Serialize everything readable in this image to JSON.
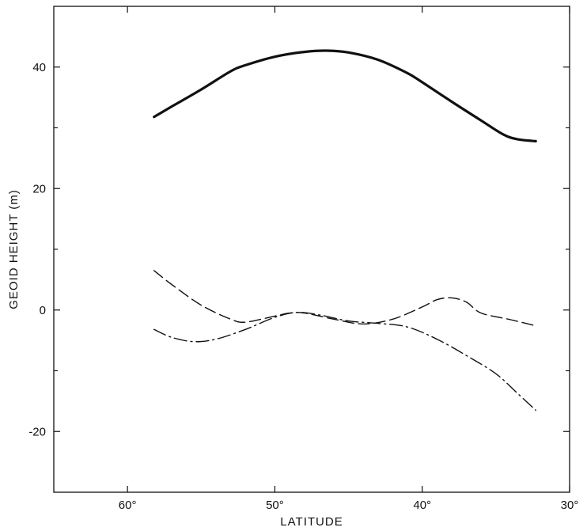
{
  "chart_data": {
    "type": "line",
    "title": "",
    "xlabel": "LATITUDE",
    "ylabel": "GEOID HEIGHT (m)",
    "xlim": [
      65,
      30
    ],
    "ylim": [
      -30,
      50
    ],
    "x_ticks": [
      60,
      50,
      40,
      30
    ],
    "x_tick_labels": [
      "60°",
      "50°",
      "40°",
      "30°"
    ],
    "y_ticks": [
      40,
      20,
      0,
      -20
    ],
    "y_tick_labels": [
      "40",
      "20",
      "0",
      "-20"
    ],
    "y_minor_ticks": [
      30,
      10,
      -10
    ],
    "grid": false,
    "legend": "none",
    "series": [
      {
        "style": "solid",
        "color": "#111111",
        "x": [
          58.2,
          57,
          55,
          53,
          52,
          50,
          48,
          46.5,
          45,
          43,
          41,
          40,
          38,
          36,
          34.5,
          33.5,
          32.3
        ],
        "y": [
          31.8,
          33.5,
          36.3,
          39.3,
          40.3,
          41.7,
          42.5,
          42.7,
          42.4,
          41.2,
          39,
          37.5,
          34.3,
          31.2,
          28.9,
          28.1,
          27.8
        ]
      },
      {
        "style": "dashed",
        "color": "#111111",
        "x": [
          58.2,
          57,
          55,
          53,
          52,
          50,
          49,
          48,
          46,
          44,
          42,
          40,
          39,
          38,
          37,
          36,
          34,
          32.3
        ],
        "y": [
          6.5,
          4.2,
          0.8,
          -1.5,
          -2,
          -1,
          -0.5,
          -0.5,
          -1.5,
          -2.3,
          -1.5,
          0.5,
          1.7,
          2,
          1.3,
          -0.5,
          -1.6,
          -2.6
        ]
      },
      {
        "style": "dash-dot",
        "color": "#111111",
        "x": [
          58.2,
          57,
          55.5,
          54,
          52,
          50,
          48.5,
          47,
          45,
          43,
          41,
          39,
          37,
          35,
          33.5,
          32.3
        ],
        "y": [
          -3.2,
          -4.5,
          -5.2,
          -4.8,
          -3.2,
          -1.2,
          -0.4,
          -0.8,
          -1.8,
          -2.2,
          -2.8,
          -4.8,
          -7.5,
          -10.5,
          -13.8,
          -16.5
        ]
      }
    ]
  }
}
